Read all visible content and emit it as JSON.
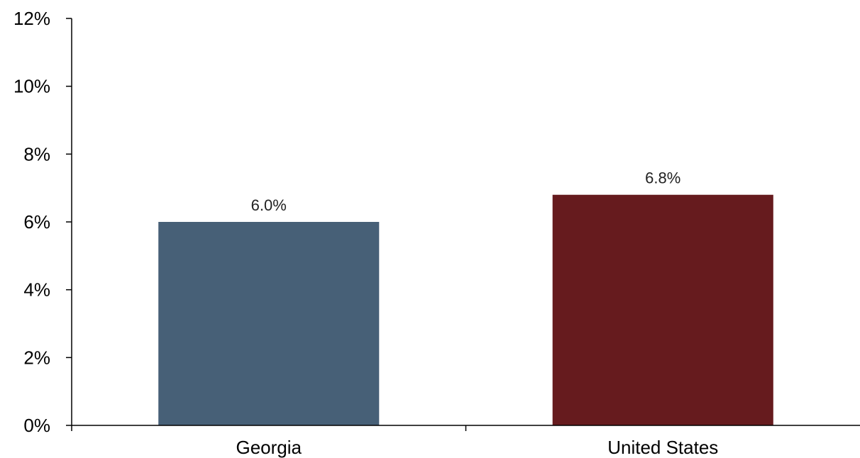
{
  "chart_data": {
    "type": "bar",
    "categories": [
      "Georgia",
      "United States"
    ],
    "values": [
      6.0,
      6.8
    ],
    "data_labels": [
      "6.0%",
      "6.8%"
    ],
    "bar_colors": [
      "#476077",
      "#661b1e"
    ],
    "title": "",
    "xlabel": "",
    "ylabel": "",
    "ylim": [
      0,
      12
    ],
    "y_ticks": [
      0,
      2,
      4,
      6,
      8,
      10,
      12
    ],
    "y_tick_labels": [
      "0%",
      "2%",
      "4%",
      "6%",
      "8%",
      "10%",
      "12%"
    ],
    "grid": false,
    "legend": "none"
  }
}
